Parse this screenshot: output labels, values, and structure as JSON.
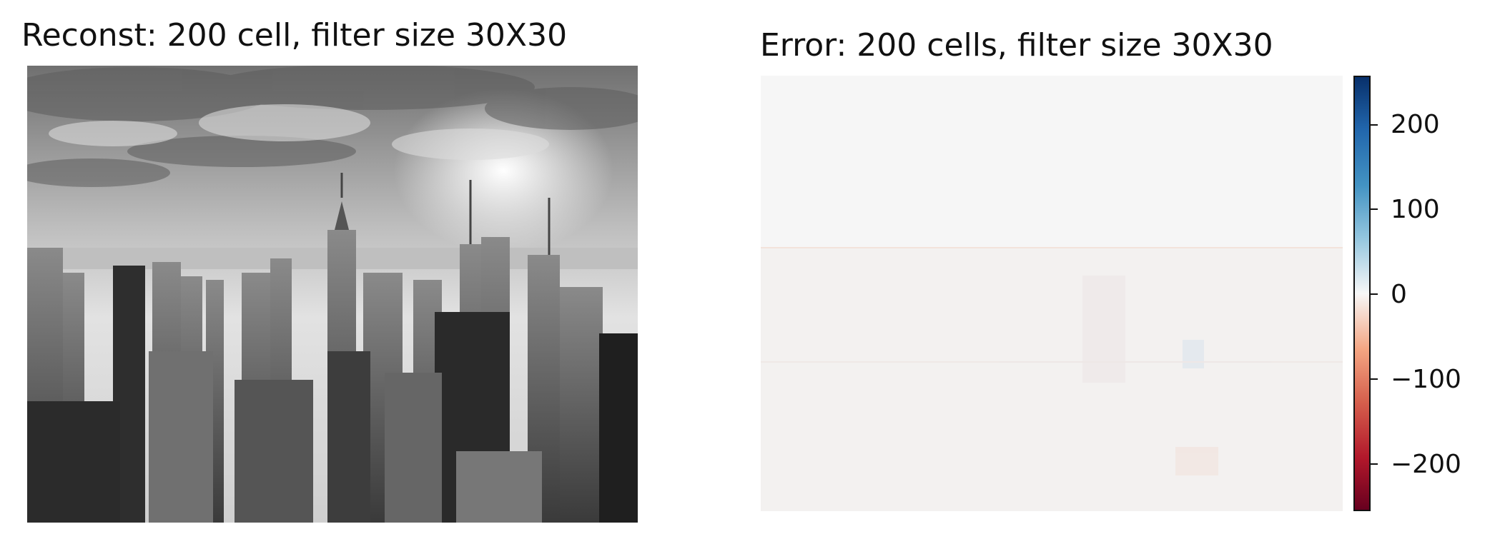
{
  "reconst": {
    "title": "Reconst: 200 cell, filter size 30X30",
    "image": "grayscale-city-skyline-photo"
  },
  "error": {
    "title": "Error: 200 cells, filter size 30X30",
    "image": "error-heatmap",
    "colormap": "RdBu",
    "colorbar": {
      "range": [
        -255,
        255
      ],
      "ticks": [
        {
          "value": 200,
          "label": "200"
        },
        {
          "value": 100,
          "label": "100"
        },
        {
          "value": 0,
          "label": "0"
        },
        {
          "value": -100,
          "label": "−100"
        },
        {
          "value": -200,
          "label": "−200"
        }
      ]
    }
  }
}
